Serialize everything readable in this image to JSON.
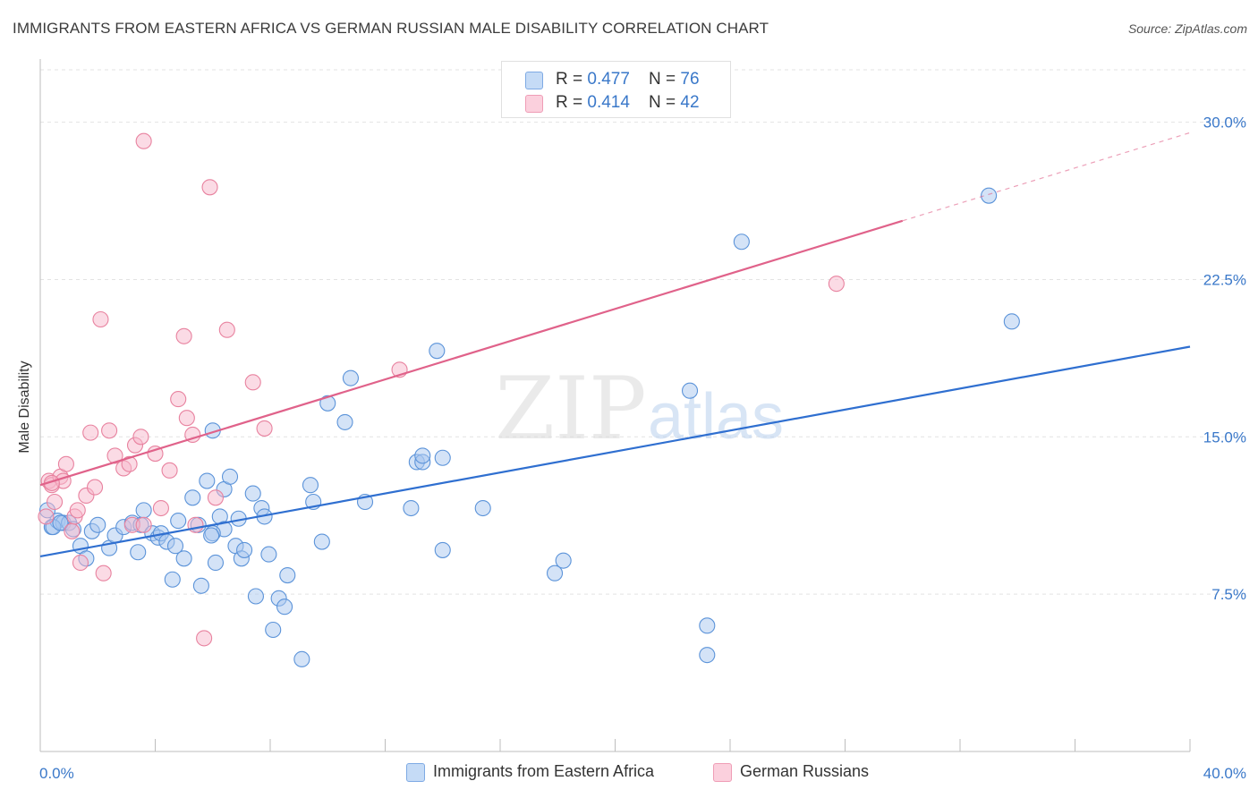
{
  "title": "IMMIGRANTS FROM EASTERN AFRICA VS GERMAN RUSSIAN MALE DISABILITY CORRELATION CHART",
  "source": "Source: ZipAtlas.com",
  "watermark": {
    "zip": "ZIP",
    "atlas": "atlas"
  },
  "legend_top": {
    "rows": [
      {
        "r_label": "R = ",
        "r_value": "0.477",
        "n_label": "N = ",
        "n_value": "76",
        "color": "#a9c8f0"
      },
      {
        "r_label": "R = ",
        "r_value": "0.414",
        "n_label": "N = ",
        "n_value": "42",
        "color": "#f7b8cb"
      }
    ]
  },
  "chart_data": {
    "type": "scatter",
    "xlabel": "",
    "ylabel": "Male Disability",
    "xlim": [
      0,
      40
    ],
    "ylim": [
      0,
      32.5
    ],
    "x_ticks": [
      "0.0%",
      "40.0%"
    ],
    "y_ticks": [
      {
        "value": 7.5,
        "label": "7.5%"
      },
      {
        "value": 15.0,
        "label": "15.0%"
      },
      {
        "value": 22.5,
        "label": "22.5%"
      },
      {
        "value": 30.0,
        "label": "30.0%"
      }
    ],
    "grid": "horizontal dashed",
    "legend": "bottom",
    "series": [
      {
        "name": "Immigrants from Eastern Africa",
        "color": "#5b93d9",
        "fill": "#a9c8f0",
        "trend": {
          "x": [
            0,
            40
          ],
          "y": [
            9.3,
            19.3
          ],
          "color": "#2f6fd0"
        },
        "points": [
          [
            0.25,
            11.5
          ],
          [
            0.4,
            10.7
          ],
          [
            0.6,
            11.0
          ],
          [
            0.8,
            10.9
          ],
          [
            1.0,
            10.9
          ],
          [
            1.15,
            10.6
          ],
          [
            1.4,
            9.8
          ],
          [
            1.6,
            9.2
          ],
          [
            1.8,
            10.5
          ],
          [
            2.0,
            10.8
          ],
          [
            2.4,
            9.7
          ],
          [
            2.6,
            10.3
          ],
          [
            2.9,
            10.7
          ],
          [
            3.2,
            10.9
          ],
          [
            3.4,
            9.5
          ],
          [
            3.5,
            10.8
          ],
          [
            3.6,
            11.5
          ],
          [
            3.9,
            10.4
          ],
          [
            4.1,
            10.2
          ],
          [
            4.2,
            10.4
          ],
          [
            4.4,
            10.0
          ],
          [
            4.6,
            8.2
          ],
          [
            4.7,
            9.8
          ],
          [
            4.8,
            11.0
          ],
          [
            5.0,
            9.2
          ],
          [
            5.3,
            12.1
          ],
          [
            5.5,
            10.8
          ],
          [
            5.6,
            7.9
          ],
          [
            5.8,
            12.9
          ],
          [
            6.1,
            9.0
          ],
          [
            6.25,
            11.2
          ],
          [
            6.4,
            10.6
          ],
          [
            6.0,
            10.4
          ],
          [
            5.95,
            10.3
          ],
          [
            6.0,
            15.3
          ],
          [
            6.4,
            12.5
          ],
          [
            6.6,
            13.1
          ],
          [
            6.8,
            9.8
          ],
          [
            6.9,
            11.1
          ],
          [
            7.0,
            9.2
          ],
          [
            7.1,
            9.6
          ],
          [
            7.4,
            12.3
          ],
          [
            7.5,
            7.4
          ],
          [
            7.7,
            11.6
          ],
          [
            7.8,
            11.2
          ],
          [
            7.95,
            9.4
          ],
          [
            8.1,
            5.8
          ],
          [
            8.3,
            7.3
          ],
          [
            8.5,
            6.9
          ],
          [
            8.6,
            8.4
          ],
          [
            9.1,
            4.4
          ],
          [
            9.4,
            12.7
          ],
          [
            9.5,
            11.9
          ],
          [
            9.8,
            10.0
          ],
          [
            10.0,
            16.6
          ],
          [
            10.6,
            15.7
          ],
          [
            10.8,
            17.8
          ],
          [
            11.3,
            11.9
          ],
          [
            12.9,
            11.6
          ],
          [
            13.1,
            13.8
          ],
          [
            13.3,
            13.8
          ],
          [
            13.3,
            14.1
          ],
          [
            13.8,
            19.1
          ],
          [
            14.0,
            9.6
          ],
          [
            14.0,
            14.0
          ],
          [
            15.4,
            11.6
          ],
          [
            17.9,
            8.5
          ],
          [
            18.2,
            9.1
          ],
          [
            22.6,
            17.2
          ],
          [
            23.2,
            6.0
          ],
          [
            23.2,
            4.6
          ],
          [
            24.4,
            24.3
          ],
          [
            33.0,
            26.5
          ],
          [
            33.8,
            20.5
          ],
          [
            0.45,
            10.7
          ],
          [
            0.7,
            10.9
          ]
        ]
      },
      {
        "name": "German Russians",
        "color": "#e8829f",
        "fill": "#f7b8cb",
        "trend": {
          "x": [
            0,
            30
          ],
          "y": [
            12.7,
            25.3
          ],
          "dash_to": [
            40,
            29.5
          ],
          "color": "#e0628a"
        },
        "points": [
          [
            0.2,
            11.2
          ],
          [
            0.3,
            12.9
          ],
          [
            0.4,
            12.7
          ],
          [
            0.5,
            11.9
          ],
          [
            0.7,
            13.1
          ],
          [
            0.8,
            12.9
          ],
          [
            0.9,
            13.7
          ],
          [
            1.1,
            10.5
          ],
          [
            1.2,
            11.2
          ],
          [
            1.3,
            11.5
          ],
          [
            1.4,
            9.0
          ],
          [
            1.6,
            12.2
          ],
          [
            1.75,
            15.2
          ],
          [
            1.9,
            12.6
          ],
          [
            2.1,
            20.6
          ],
          [
            2.2,
            8.5
          ],
          [
            2.4,
            15.3
          ],
          [
            2.6,
            14.1
          ],
          [
            2.9,
            13.5
          ],
          [
            3.1,
            13.7
          ],
          [
            3.2,
            10.8
          ],
          [
            3.3,
            14.6
          ],
          [
            3.5,
            15.0
          ],
          [
            3.6,
            10.8
          ],
          [
            3.6,
            29.1
          ],
          [
            4.0,
            14.2
          ],
          [
            4.2,
            11.6
          ],
          [
            4.5,
            13.4
          ],
          [
            4.8,
            16.8
          ],
          [
            5.0,
            19.8
          ],
          [
            5.1,
            15.9
          ],
          [
            5.3,
            15.1
          ],
          [
            5.4,
            10.8
          ],
          [
            5.7,
            5.4
          ],
          [
            5.9,
            26.9
          ],
          [
            6.1,
            12.1
          ],
          [
            6.5,
            20.1
          ],
          [
            7.4,
            17.6
          ],
          [
            7.8,
            15.4
          ],
          [
            12.5,
            18.2
          ],
          [
            27.7,
            22.3
          ],
          [
            0.4,
            12.8
          ]
        ]
      }
    ]
  }
}
